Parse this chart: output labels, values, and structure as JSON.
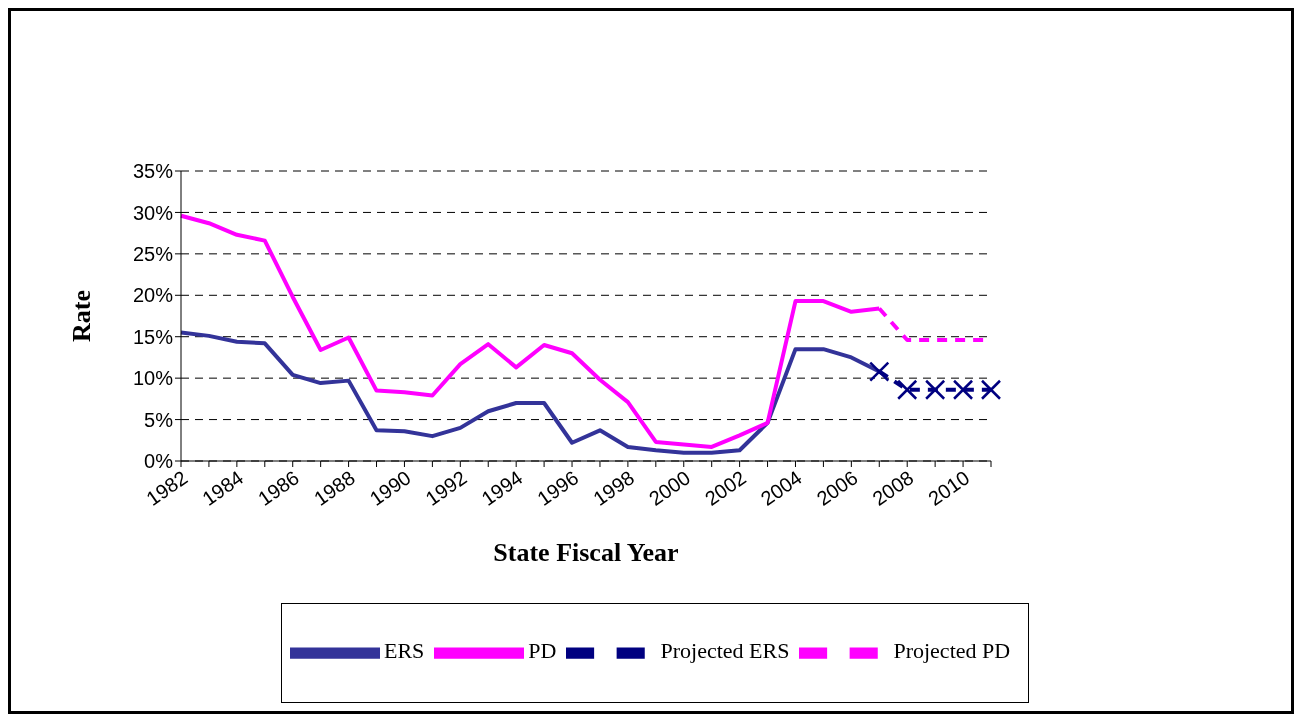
{
  "chart_data": {
    "type": "line",
    "xlabel": "State Fiscal Year",
    "ylabel": "Rate",
    "categories": [
      "1982",
      null,
      "1984",
      null,
      "1986",
      null,
      "1988",
      null,
      "1990",
      null,
      "1992",
      null,
      "1994",
      null,
      "1996",
      null,
      "1998",
      null,
      "2000",
      null,
      "2002",
      null,
      "2004",
      null,
      "2006",
      null,
      "2008",
      null,
      "2010",
      null
    ],
    "series": [
      {
        "name": "ERS",
        "color": "#333399",
        "line_style": "solid",
        "marker": "none",
        "values": [
          15.5,
          15.1,
          14.4,
          14.2,
          10.4,
          9.4,
          9.7,
          3.7,
          3.6,
          3.0,
          4.0,
          6.0,
          7.0,
          7.0,
          2.2,
          3.7,
          1.7,
          1.3,
          1.0,
          1.0,
          1.3,
          4.6,
          13.5,
          13.5,
          12.5,
          10.8,
          null,
          null,
          null,
          null
        ]
      },
      {
        "name": "PD",
        "color": "#ff00ff",
        "line_style": "solid",
        "marker": "none",
        "values": [
          29.6,
          28.7,
          27.3,
          26.6,
          19.8,
          13.4,
          14.9,
          8.5,
          8.3,
          7.9,
          11.7,
          14.1,
          11.3,
          14.0,
          13.0,
          9.8,
          7.1,
          2.3,
          2.0,
          1.7,
          3.1,
          4.6,
          19.3,
          19.3,
          18.0,
          18.4,
          null,
          null,
          null,
          null
        ]
      },
      {
        "name": "Projected ERS",
        "color": "#000080",
        "line_style": "dashed",
        "marker": "cross",
        "values": [
          null,
          null,
          null,
          null,
          null,
          null,
          null,
          null,
          null,
          null,
          null,
          null,
          null,
          null,
          null,
          null,
          null,
          null,
          null,
          null,
          null,
          null,
          null,
          null,
          null,
          10.8,
          8.6,
          8.6,
          8.6,
          8.6
        ]
      },
      {
        "name": "Projected PD",
        "color": "#ff00ff",
        "line_style": "dashed",
        "marker": "none",
        "values": [
          null,
          null,
          null,
          null,
          null,
          null,
          null,
          null,
          null,
          null,
          null,
          null,
          null,
          null,
          null,
          null,
          null,
          null,
          null,
          null,
          null,
          null,
          null,
          null,
          null,
          18.4,
          14.6,
          14.6,
          14.6,
          14.6
        ]
      }
    ],
    "ylim": [
      0,
      35
    ],
    "yticks": [
      {
        "value": 0,
        "label": "0%"
      },
      {
        "value": 5,
        "label": "5%"
      },
      {
        "value": 10,
        "label": "10%"
      },
      {
        "value": 15,
        "label": "15%"
      },
      {
        "value": 20,
        "label": "20%"
      },
      {
        "value": 25,
        "label": "25%"
      },
      {
        "value": 30,
        "label": "30%"
      },
      {
        "value": 35,
        "label": "35%"
      }
    ],
    "grid": "y",
    "legend": "bottom"
  }
}
